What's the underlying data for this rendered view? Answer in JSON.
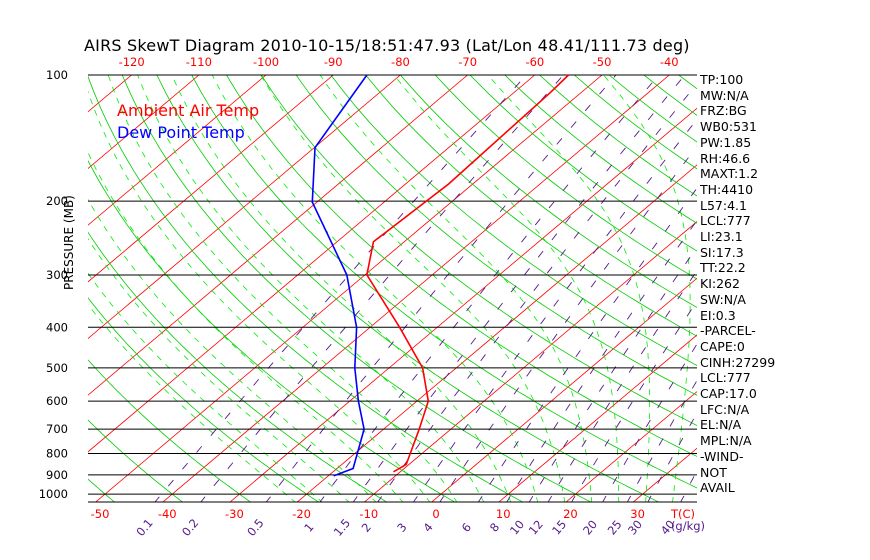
{
  "title": "AIRS SkewT Diagram 2010-10-15/18:51:47.93 (Lat/Lon 48.41/111.73 deg)",
  "legend": {
    "ambient": "Ambient Air Temp",
    "dewpoint": "Dew Point Temp"
  },
  "colors": {
    "ambient": "#ff0000",
    "dewpoint": "#0000ff",
    "isotherm": "#ff0000",
    "dry_adiabat": "#00cc00",
    "moist_adiabat": "#00ee00",
    "mixing_ratio": "#551a8b"
  },
  "indices": [
    "TP:100",
    "MW:N/A",
    "FRZ:BG",
    "WB0:531",
    "PW:1.85",
    "RH:46.6",
    "MAXT:1.2",
    "TH:4410",
    "L57:4.1",
    "LCL:777",
    "LI:23.1",
    "SI:17.3",
    "TT:22.2",
    "KI:262",
    "SW:N/A",
    "EI:0.3",
    "-PARCEL-",
    "CAPE:0",
    "CINH:27299",
    "LCL:777",
    "CAP:17.0",
    "LFC:N/A",
    "EL:N/A",
    "MPL:N/A",
    "-WIND-",
    "NOT",
    "AVAIL"
  ],
  "chart_data": {
    "type": "line",
    "title": "AIRS SkewT Diagram 2010-10-15/18:51:47.93 (Lat/Lon 48.41/111.73 deg)",
    "ylabel": "PRESSURE (MB)",
    "xlabel": "T(C)",
    "mixing_ratio_unit": "(g/kg)",
    "pressure_ticks": [
      100,
      200,
      300,
      400,
      500,
      600,
      700,
      800,
      900,
      1000
    ],
    "top_temp_ticks": [
      -120,
      -110,
      -100,
      -90,
      -80,
      -70,
      -60,
      -50,
      -40
    ],
    "bottom_temp_ticks": [
      -50,
      -40,
      -30,
      -20,
      -10,
      0,
      10,
      20,
      30
    ],
    "mixing_ratio_ticks": [
      "0.1",
      "0.2",
      "0.5",
      "1",
      "1.5",
      "2",
      "3",
      "4",
      "6",
      "8",
      "10",
      "12",
      "15",
      "20",
      "25",
      "30",
      "40"
    ],
    "ylim": [
      1050,
      100
    ],
    "series": [
      {
        "name": "Ambient Air Temp",
        "points": [
          [
            100,
            -55
          ],
          [
            110,
            -54.6
          ],
          [
            182,
            -53.6
          ],
          [
            250,
            -54.6
          ],
          [
            300,
            -49.7
          ],
          [
            400,
            -35.6
          ],
          [
            500,
            -25
          ],
          [
            600,
            -18.3
          ],
          [
            700,
            -14.7
          ],
          [
            850,
            -10.4
          ],
          [
            885,
            -11
          ]
        ]
      },
      {
        "name": "Dew Point Temp",
        "points": [
          [
            100,
            -85
          ],
          [
            149,
            -79.9
          ],
          [
            201,
            -70.7
          ],
          [
            300,
            -52.7
          ],
          [
            400,
            -42
          ],
          [
            500,
            -35.1
          ],
          [
            600,
            -28.7
          ],
          [
            700,
            -22.9
          ],
          [
            869,
            -17.6
          ],
          [
            905,
            -19.2
          ]
        ]
      }
    ]
  }
}
